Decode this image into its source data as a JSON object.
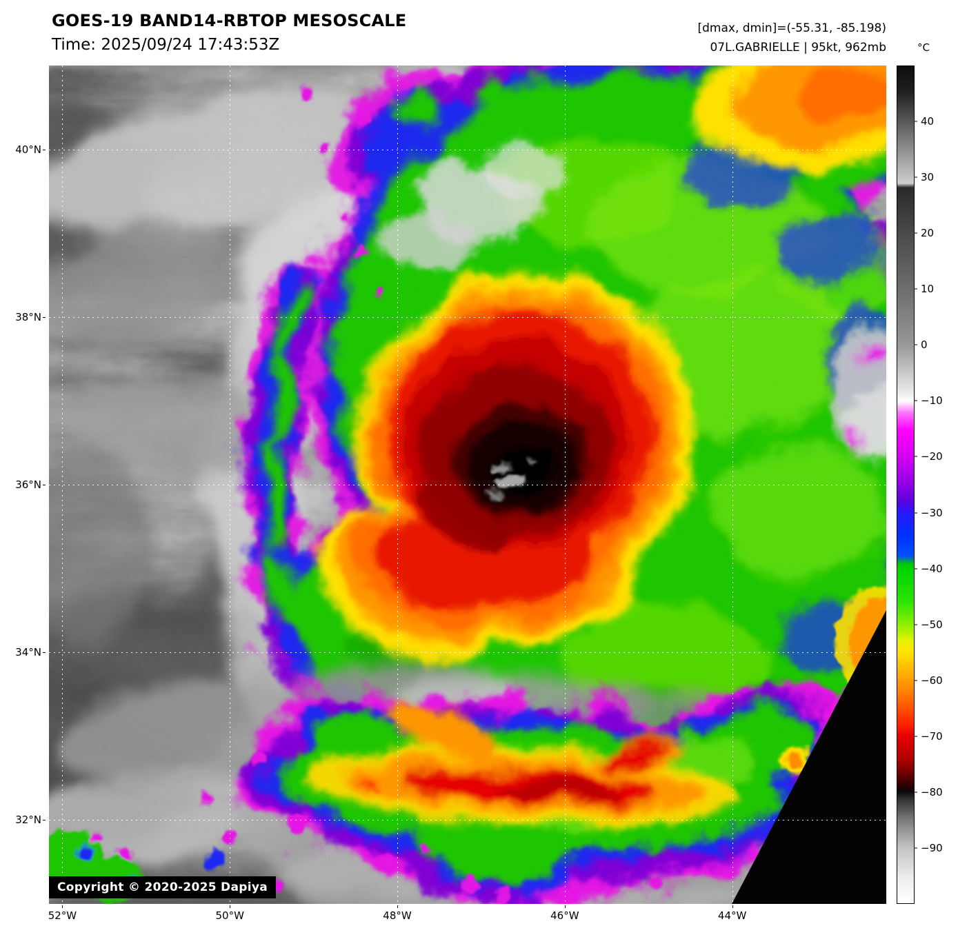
{
  "header": {
    "title": "GOES-19 BAND14-RBTOP MESOSCALE",
    "time": "Time: 2025/09/24 17:43:53Z",
    "dmax_dmin": "[dmax, dmin]=(-55.31, -85.198)",
    "storm_info": "07L.GABRIELLE | 95kt, 962mb"
  },
  "image": {
    "copyright": "Copyright © 2020-2025 Dapiya"
  },
  "axes": {
    "lat_range_deg_n": [
      41.0,
      31.0
    ],
    "lon_range_deg_w": [
      52.16,
      42.16
    ],
    "lat_ticks": [
      {
        "label": "40°N",
        "value": 40
      },
      {
        "label": "38°N",
        "value": 38
      },
      {
        "label": "36°N",
        "value": 36
      },
      {
        "label": "34°N",
        "value": 34
      },
      {
        "label": "32°N",
        "value": 32
      }
    ],
    "lon_ticks": [
      {
        "label": "52°W",
        "value": 52
      },
      {
        "label": "50°W",
        "value": 50
      },
      {
        "label": "48°W",
        "value": 48
      },
      {
        "label": "46°W",
        "value": 46
      },
      {
        "label": "44°W",
        "value": 44
      }
    ]
  },
  "colorbar": {
    "unit": "°C",
    "value_range": [
      50,
      -100
    ],
    "ticks": [
      {
        "label": "40",
        "value": 40
      },
      {
        "label": "30",
        "value": 30
      },
      {
        "label": "20",
        "value": 20
      },
      {
        "label": "10",
        "value": 10
      },
      {
        "label": "0",
        "value": 0
      },
      {
        "label": "−10",
        "value": -10
      },
      {
        "label": "−20",
        "value": -20
      },
      {
        "label": "−30",
        "value": -30
      },
      {
        "label": "−40",
        "value": -40
      },
      {
        "label": "−50",
        "value": -50
      },
      {
        "label": "−60",
        "value": -60
      },
      {
        "label": "−70",
        "value": -70
      },
      {
        "label": "−80",
        "value": -80
      },
      {
        "label": "−90",
        "value": -90
      }
    ]
  }
}
